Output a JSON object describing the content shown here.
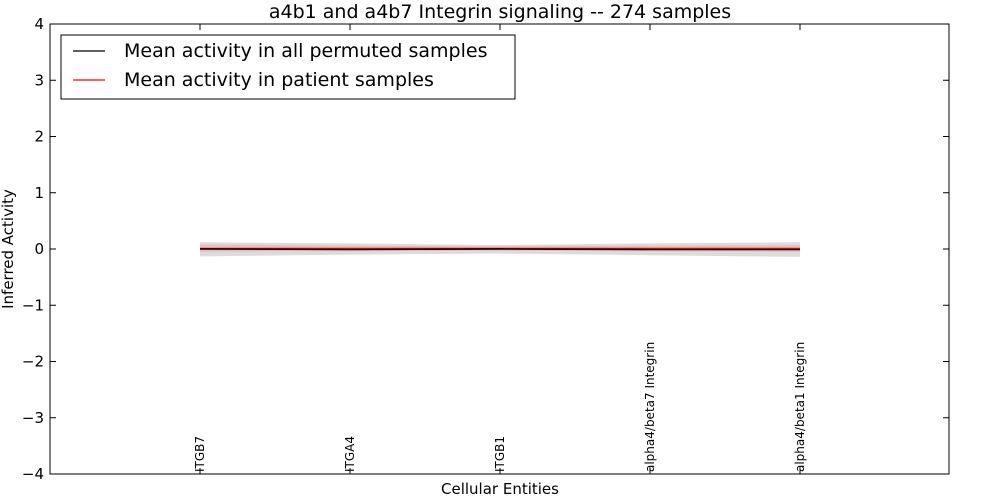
{
  "chart_data": {
    "type": "line",
    "title": "a4b1 and a4b7 Integrin signaling -- 274 samples",
    "xlabel": "Cellular Entities",
    "ylabel": "Inferred Activity",
    "ylim": [
      -4,
      4
    ],
    "yticks": [
      4,
      3,
      2,
      1,
      0,
      -1,
      -2,
      -3,
      -4
    ],
    "ytick_labels": [
      "4",
      "3",
      "2",
      "1",
      "0",
      "−1",
      "−2",
      "−3",
      "−4"
    ],
    "categories": [
      "ITGB7",
      "ITGA4",
      "ITGB1",
      "alpha4/beta7 Integrin",
      "alpha4/beta1 Integrin"
    ],
    "series": [
      {
        "name": "Mean activity in all permuted samples",
        "color": "#000000",
        "values": [
          0.0,
          -0.01,
          0.0,
          -0.01,
          -0.01
        ],
        "band_upper": [
          0.12,
          0.1,
          0.07,
          0.1,
          0.12
        ],
        "band_lower": [
          -0.13,
          -0.1,
          -0.08,
          -0.11,
          -0.14
        ]
      },
      {
        "name": "Mean activity in patient samples",
        "color": "#ff0000",
        "values": [
          0.01,
          0.01,
          0.01,
          0.01,
          0.01
        ],
        "band_upper": [
          0.08,
          0.06,
          0.05,
          0.06,
          0.07
        ],
        "band_lower": [
          -0.05,
          -0.04,
          -0.03,
          -0.04,
          -0.05
        ]
      }
    ],
    "legend_location": "upper-left",
    "grid": false
  }
}
